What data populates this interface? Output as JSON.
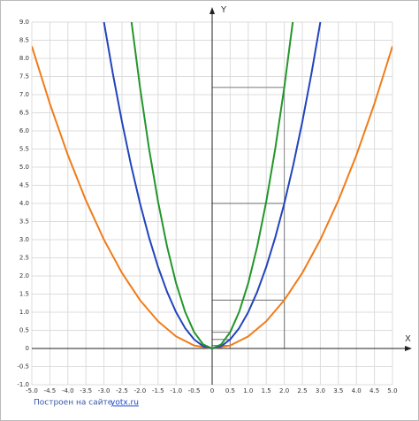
{
  "chart_data": {
    "type": "line",
    "x_label": "X",
    "y_label": "Y",
    "xlim": [
      -5,
      5
    ],
    "ylim": [
      -1,
      9
    ],
    "xticks": [
      {
        "value": -5,
        "label": "-5.0"
      },
      -4.5,
      {
        "value": -4,
        "label": "-4.0"
      },
      -3.5,
      {
        "value": -3,
        "label": "-3.0"
      },
      -2.5,
      {
        "value": -2,
        "label": "-2.0"
      },
      -1.5,
      {
        "value": -1,
        "label": "-1.0"
      },
      -0.5,
      0,
      0.5,
      {
        "value": 1,
        "label": "1.0"
      },
      1.5,
      {
        "value": 2,
        "label": "2.0"
      },
      2.5,
      {
        "value": 3,
        "label": "3.0"
      },
      3.5,
      {
        "value": 4,
        "label": "4.0"
      },
      4.5,
      {
        "value": 5,
        "label": "5.0"
      }
    ],
    "yticks": [
      {
        "value": -1,
        "label": "-1.0"
      },
      -0.5,
      0,
      0.5,
      {
        "value": 1,
        "label": "1.0"
      },
      1.5,
      {
        "value": 2,
        "label": "2.0"
      },
      2.5,
      {
        "value": 3,
        "label": "3.0"
      },
      3.5,
      {
        "value": 4,
        "label": "4.0"
      },
      4.5,
      {
        "value": 5,
        "label": "5.0"
      },
      5.5,
      {
        "value": 6,
        "label": "6.0"
      },
      6.5,
      {
        "value": 7,
        "label": "7.0"
      },
      7.5,
      {
        "value": 8,
        "label": "8.0"
      },
      8.5,
      {
        "value": 9,
        "label": "9.0"
      }
    ],
    "grid": true,
    "series": [
      {
        "color": "#f07c1a",
        "x": [
          -5,
          -4.5,
          -4,
          -3.5,
          -3,
          -2.5,
          -2,
          -1.5,
          -1,
          -0.5,
          0,
          0.5,
          1,
          1.5,
          2,
          2.5,
          3,
          3.5,
          4,
          4.5,
          5
        ],
        "values": [
          8.333,
          6.75,
          5.333,
          4.083,
          3,
          2.083,
          1.333,
          0.75,
          0.333,
          0.083,
          0,
          0.083,
          0.333,
          0.75,
          1.333,
          2.083,
          3,
          4.083,
          5.333,
          6.75,
          8.333
        ]
      },
      {
        "color": "#2244bb",
        "x": [
          -3,
          -2.75,
          -2.5,
          -2.25,
          -2,
          -1.75,
          -1.5,
          -1.25,
          -1,
          -0.75,
          -0.5,
          -0.25,
          0,
          0.25,
          0.5,
          0.75,
          1,
          1.25,
          1.5,
          1.75,
          2,
          2.25,
          2.5,
          2.75,
          3
        ],
        "values": [
          9,
          7.5625,
          6.25,
          5.0625,
          4,
          3.0625,
          2.25,
          1.5625,
          1,
          0.5625,
          0.25,
          0.0625,
          0,
          0.0625,
          0.25,
          0.5625,
          1,
          1.5625,
          2.25,
          3.0625,
          4,
          5.0625,
          6.25,
          7.5625,
          9
        ]
      },
      {
        "color": "#22962a",
        "x": [
          -2.25,
          -2,
          -1.75,
          -1.5,
          -1.25,
          -1,
          -0.75,
          -0.5,
          -0.25,
          0,
          0.25,
          0.5,
          0.75,
          1,
          1.25,
          1.5,
          1.75,
          2,
          2.25
        ],
        "values": [
          9.1125,
          7.2,
          5.5125,
          4.05,
          2.8125,
          1.8,
          1.0125,
          0.45,
          0.1125,
          0,
          0.1125,
          0.45,
          1.0125,
          1.8,
          2.8125,
          4.05,
          5.5125,
          7.2,
          9.1125
        ]
      }
    ],
    "guides": [
      {
        "x": 2,
        "y": 7.2
      },
      {
        "x": 2,
        "y": 4
      },
      {
        "x": 2,
        "y": 1.333
      },
      {
        "x": 0.5,
        "y": 0.45
      },
      {
        "x": 0.5,
        "y": 0.25
      },
      {
        "x": 0.5,
        "y": 0.083
      }
    ],
    "footer": {
      "text": "Построен на сайте",
      "link": "yotx.ru"
    }
  }
}
